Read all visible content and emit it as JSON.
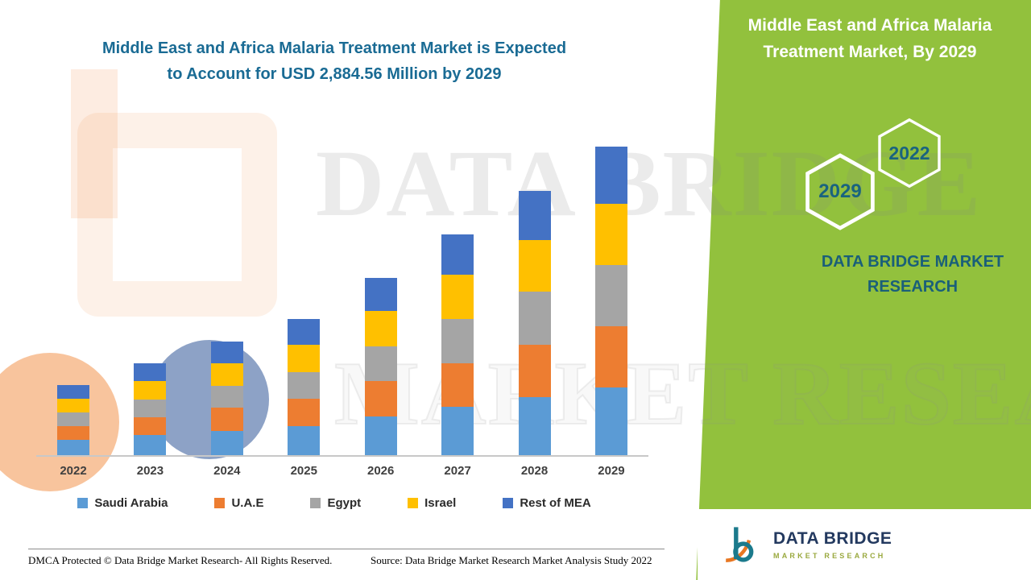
{
  "title": {
    "line1": "Middle East and Africa Malaria Treatment Market is Expected",
    "line2": "to Account for USD 2,884.56 Million by 2029"
  },
  "side_panel": {
    "heading": "Middle East and Africa Malaria Treatment Market, By 2029",
    "hexagons": [
      {
        "label": "2029"
      },
      {
        "label": "2022"
      }
    ],
    "brand": "DATA BRIDGE MARKET RESEARCH",
    "bg_color": "#92C13D",
    "heading_color": "#FFFFFF",
    "brand_color": "#1A5F79"
  },
  "watermark": {
    "line1": "DATA BRIDGE",
    "line2": "MARKET RESEARCH"
  },
  "footer": {
    "dmca": "DMCA Protected © Data Bridge Market Research- All Rights Reserved.",
    "source": "Source: Data Bridge Market Research Market Analysis Study 2022"
  },
  "logo": {
    "name": "DATA BRIDGE",
    "subtext": "MARKET RESEARCH"
  },
  "chart_data": {
    "type": "bar",
    "stacked": true,
    "title": "Middle East and Africa Malaria Treatment Market is Expected to Account for USD 2,884.56 Million by 2029",
    "unit": "USD Million",
    "categories": [
      "2022",
      "2023",
      "2024",
      "2025",
      "2026",
      "2027",
      "2028",
      "2029"
    ],
    "series": [
      {
        "name": "Saudi Arabia",
        "color": "#5B9BD5",
        "values": [
          140,
          185,
          230,
          275,
          360,
          450,
          540,
          630
        ]
      },
      {
        "name": "U.A.E",
        "color": "#ED7D31",
        "values": [
          130,
          170,
          212,
          252,
          332,
          412,
          494,
          574
        ]
      },
      {
        "name": "Egypt",
        "color": "#A5A5A5",
        "values": [
          128,
          168,
          208,
          250,
          328,
          410,
          492,
          576
        ]
      },
      {
        "name": "Israel",
        "color": "#FFC000",
        "values": [
          132,
          172,
          210,
          252,
          330,
          413,
          489,
          570
        ]
      },
      {
        "name": "Rest of MEA",
        "color": "#4472C4",
        "values": [
          125,
          163,
          202,
          243,
          307,
          378,
          455,
          534.56
        ]
      }
    ],
    "totals": [
      655,
      858,
      1062,
      1272,
      1657,
      2063,
      2470,
      2884.56
    ],
    "ylim": [
      0,
      2884.56
    ],
    "grid": false,
    "legend_position": "bottom",
    "x_axis_labels_bold": true
  }
}
